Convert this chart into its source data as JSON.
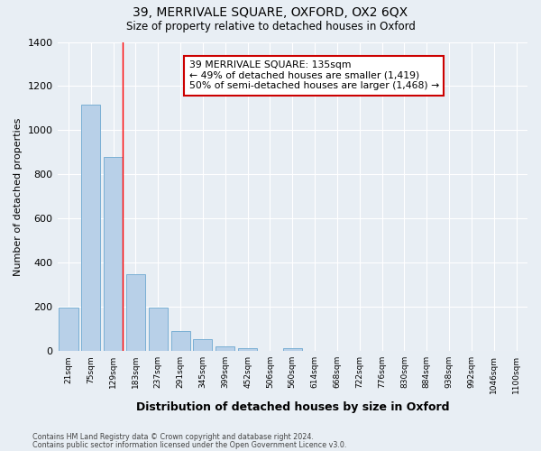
{
  "title": "39, MERRIVALE SQUARE, OXFORD, OX2 6QX",
  "subtitle": "Size of property relative to detached houses in Oxford",
  "xlabel": "Distribution of detached houses by size in Oxford",
  "ylabel": "Number of detached properties",
  "bar_color": "#b8d0e8",
  "bar_edge_color": "#7aafd4",
  "background_color": "#e8eef4",
  "grid_color": "#ffffff",
  "categories": [
    "21sqm",
    "75sqm",
    "129sqm",
    "183sqm",
    "237sqm",
    "291sqm",
    "345sqm",
    "399sqm",
    "452sqm",
    "506sqm",
    "560sqm",
    "614sqm",
    "668sqm",
    "722sqm",
    "776sqm",
    "830sqm",
    "884sqm",
    "938sqm",
    "992sqm",
    "1046sqm",
    "1100sqm"
  ],
  "values": [
    195,
    1115,
    880,
    350,
    195,
    90,
    53,
    20,
    15,
    0,
    13,
    0,
    0,
    0,
    0,
    0,
    0,
    0,
    0,
    0,
    0
  ],
  "annotation_line1": "39 MERRIVALE SQUARE: 135sqm",
  "annotation_line2": "← 49% of detached houses are smaller (1,419)",
  "annotation_line3": "50% of semi-detached houses are larger (1,468) →",
  "annotation_box_color": "#ffffff",
  "annotation_box_edge_color": "#cc0000",
  "ylim": [
    0,
    1400
  ],
  "yticks": [
    0,
    200,
    400,
    600,
    800,
    1000,
    1200,
    1400
  ],
  "footer_line1": "Contains HM Land Registry data © Crown copyright and database right 2024.",
  "footer_line2": "Contains public sector information licensed under the Open Government Licence v3.0."
}
